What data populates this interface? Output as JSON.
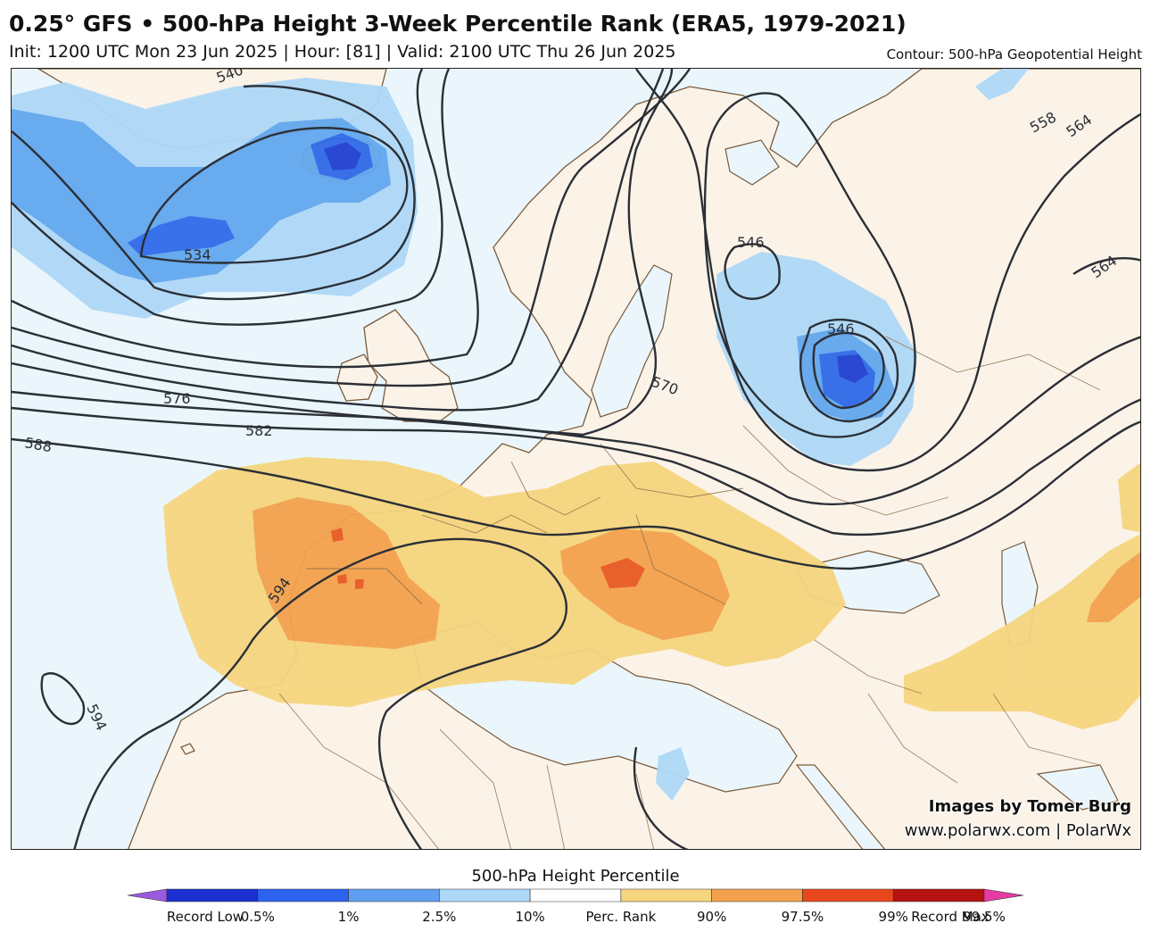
{
  "header": {
    "title": "0.25° GFS • 500-hPa Height 3-Week Percentile Rank (ERA5, 1979-2021)",
    "subtitle": "Init: 1200 UTC Mon 23 Jun 2025 | Hour: [81] | Valid: 2100 UTC Thu 26 Jun 2025",
    "contour_note": "Contour: 500-hPa Geopotential Height"
  },
  "credits": {
    "line1": "Images by Tomer Burg",
    "line2": "www.polarwx.com | PolarWx"
  },
  "colors": {
    "ocean": "#eaf6fc",
    "land": "#fbf3e8",
    "border": "#7a5a3a",
    "contour": "#2b2f36",
    "anomaly_10": "#aed8f7",
    "anomaly_2_5": "#62a7ee",
    "anomaly_1": "#2f6ae8",
    "anomaly_0_5": "#1f3fd0",
    "anomaly_90": "#f5d57e",
    "anomaly_97_5": "#f3a14d",
    "anomaly_99": "#e85a22"
  },
  "contour_labels": [
    {
      "text": "540"
    },
    {
      "text": "534"
    },
    {
      "text": "546"
    },
    {
      "text": "546"
    },
    {
      "text": "558"
    },
    {
      "text": "564"
    },
    {
      "text": "564"
    },
    {
      "text": "570"
    },
    {
      "text": "576"
    },
    {
      "text": "582"
    },
    {
      "text": "588"
    },
    {
      "text": "594"
    },
    {
      "text": "594"
    }
  ],
  "colorbar": {
    "title": "500-hPa Height Percentile",
    "colors": [
      "#9b59e0",
      "#1c2fd0",
      "#2b63f0",
      "#5f9ef0",
      "#aed8f7",
      "#ffffff",
      "#f5d57e",
      "#f3a14d",
      "#e8471c",
      "#b51212",
      "#e83aa5"
    ],
    "labels": [
      "Record Low",
      "0.5%",
      "1%",
      "2.5%",
      "10%",
      "Perc. Rank",
      "90%",
      "97.5%",
      "99%",
      "99.5%",
      "Record Max"
    ]
  }
}
